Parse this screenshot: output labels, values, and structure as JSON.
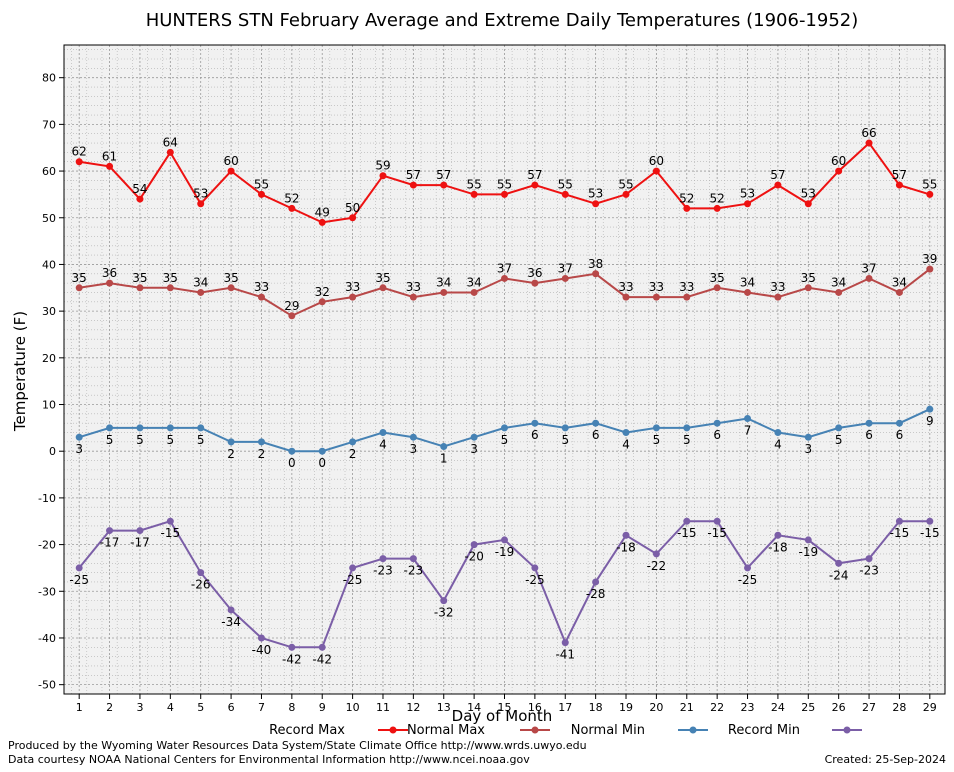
{
  "chart_data": {
    "type": "line",
    "title": "HUNTERS STN February Average and Extreme Daily Temperatures (1906-1952)",
    "xlabel": "Day of Month",
    "ylabel": "Temperature (F)",
    "xlim": [
      0.5,
      29.5
    ],
    "ylim": [
      -52,
      87
    ],
    "yticks": [
      -50,
      -40,
      -30,
      -20,
      -10,
      0,
      10,
      20,
      30,
      40,
      50,
      60,
      70,
      80
    ],
    "x": [
      1,
      2,
      3,
      4,
      5,
      6,
      7,
      8,
      9,
      10,
      11,
      12,
      13,
      14,
      15,
      16,
      17,
      18,
      19,
      20,
      21,
      22,
      23,
      24,
      25,
      26,
      27,
      28,
      29
    ],
    "grid": true,
    "legend_position": "bottom",
    "series": [
      {
        "name": "Record Max",
        "color": "#ee1111",
        "label_pos": "above",
        "values": [
          62,
          61,
          54,
          64,
          53,
          60,
          55,
          52,
          49,
          50,
          59,
          57,
          57,
          55,
          55,
          57,
          55,
          53,
          55,
          60,
          52,
          52,
          53,
          57,
          53,
          60,
          66,
          57,
          55
        ]
      },
      {
        "name": "Normal Max",
        "color": "#b84848",
        "label_pos": "above",
        "values": [
          35,
          36,
          35,
          35,
          34,
          35,
          33,
          29,
          32,
          33,
          35,
          33,
          34,
          34,
          37,
          36,
          37,
          38,
          33,
          33,
          33,
          35,
          34,
          33,
          35,
          34,
          37,
          34,
          39
        ]
      },
      {
        "name": "Normal Min",
        "color": "#4682b4",
        "label_pos": "below",
        "values": [
          3,
          5,
          5,
          5,
          5,
          2,
          2,
          0,
          0,
          2,
          4,
          3,
          1,
          3,
          5,
          6,
          5,
          6,
          4,
          5,
          5,
          6,
          7,
          4,
          3,
          5,
          6,
          6,
          9
        ]
      },
      {
        "name": "Record Min",
        "color": "#7b5ea7",
        "label_pos": "below",
        "values": [
          -25,
          -17,
          -17,
          -15,
          -26,
          -34,
          -40,
          -42,
          -42,
          -25,
          -23,
          -23,
          -32,
          -20,
          -19,
          -25,
          -41,
          -28,
          -18,
          -22,
          -15,
          -15,
          -25,
          -18,
          -19,
          -24,
          -23,
          -15,
          -15
        ]
      }
    ]
  },
  "footer": {
    "producer": "Produced by the Wyoming Water Resources Data System/State Climate Office http://www.wrds.uwyo.edu",
    "courtesy": "Data courtesy NOAA National Centers for Environmental Information http://www.ncei.noaa.gov",
    "created": "Created:  25-Sep-2024"
  }
}
